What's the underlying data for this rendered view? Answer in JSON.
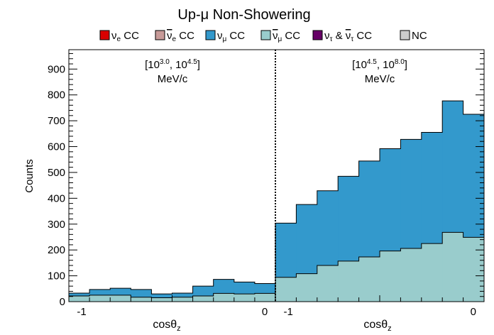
{
  "chart_data": {
    "type": "area",
    "title": "Up-μ Non-Showering",
    "xlabel": "cosθ",
    "xlabel_sub": "z",
    "ylabel": "Counts",
    "ylim": [
      0,
      975
    ],
    "yticks": [
      0,
      100,
      200,
      300,
      400,
      500,
      600,
      700,
      800,
      900
    ],
    "colors": {
      "nue_cc": "#d90000",
      "nuebar_cc": "#c79a98",
      "numu_cc": "#3399cc",
      "numubar_cc": "#99cccc",
      "nutau_cc": "#660066",
      "nc": "#cccccc"
    },
    "legend": [
      {
        "key": "nue_cc",
        "label": "ν",
        "sub": "e",
        "suffix": " CC",
        "color": "#d90000",
        "bar": false
      },
      {
        "key": "nuebar_cc",
        "label": "ν",
        "sub": "e",
        "suffix": " CC",
        "color": "#c79a98",
        "bar": true
      },
      {
        "key": "numu_cc",
        "label": "ν",
        "sub": "μ",
        "suffix": " CC",
        "color": "#3399cc",
        "bar": false
      },
      {
        "key": "numubar_cc",
        "label": "ν",
        "sub": "μ",
        "suffix": " CC",
        "color": "#99cccc",
        "bar": true
      },
      {
        "key": "nutau_cc",
        "label": "ν",
        "sub": "τ",
        "suffix": " & ",
        "label2": "ν",
        "sub2": "τ",
        "suffix2": " CC",
        "color": "#660066",
        "bar": false
      },
      {
        "key": "nc",
        "label": "NC",
        "color": "#cccccc",
        "bar": false
      }
    ],
    "panels": [
      {
        "region_label": "[10^3.0, 10^4.5]",
        "region_base": "[10",
        "region_exp1": "3.0",
        "region_mid": ", 10",
        "region_exp2": "4.5",
        "region_close": "]",
        "region_unit": "MeV/c",
        "x_range": [
          -1,
          0
        ],
        "x_tick_labels": [
          "-1",
          "0"
        ],
        "bins": 10,
        "numubar": [
          22,
          25,
          25,
          17,
          15,
          17,
          22,
          32,
          30,
          32
        ],
        "total": [
          33,
          47,
          52,
          47,
          30,
          33,
          60,
          86,
          76,
          70
        ]
      },
      {
        "region_label": "[10^4.5, 10^8.0]",
        "region_base": "[10",
        "region_exp1": "4.5",
        "region_mid": ", 10",
        "region_exp2": "8.0",
        "region_close": "]",
        "region_unit": "MeV/c",
        "x_range": [
          -1,
          0
        ],
        "x_tick_labels": [
          "-1",
          "0"
        ],
        "bins": 10,
        "numubar": [
          94,
          108,
          140,
          157,
          173,
          196,
          206,
          225,
          268,
          249
        ],
        "total": [
          304,
          376,
          429,
          485,
          544,
          592,
          628,
          655,
          777,
          725
        ]
      }
    ]
  }
}
